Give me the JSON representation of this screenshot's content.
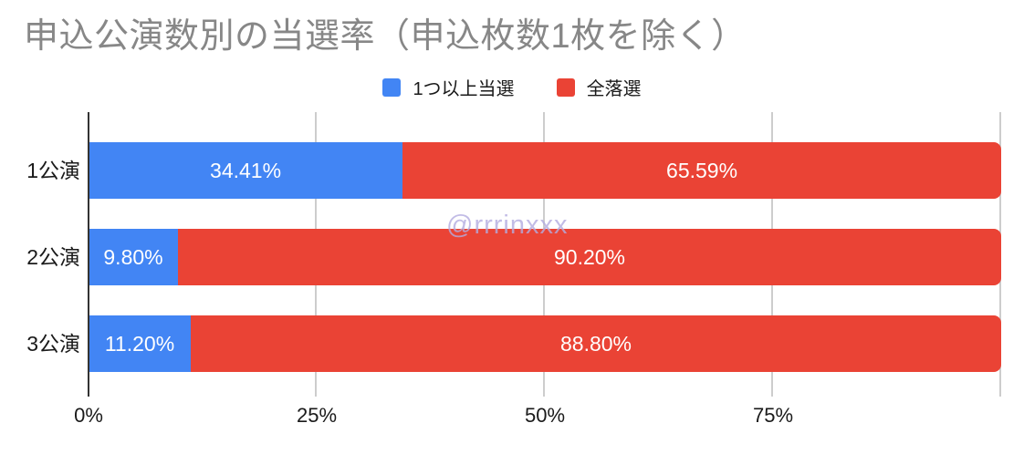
{
  "chart_data": {
    "type": "bar",
    "orientation": "horizontal",
    "stacked": true,
    "title": "申込公演数別の当選率（申込枚数1枚を除く）",
    "categories": [
      "1公演",
      "2公演",
      "3公演"
    ],
    "series": [
      {
        "name": "1つ以上当選",
        "color": "#4285F4",
        "values": [
          34.41,
          9.8,
          11.2
        ]
      },
      {
        "name": "全落選",
        "color": "#EA4335",
        "values": [
          65.59,
          90.2,
          88.8
        ]
      }
    ],
    "value_labels": [
      [
        "34.41%",
        "65.59%"
      ],
      [
        "9.80%",
        "90.20%"
      ],
      [
        "11.20%",
        "88.80%"
      ]
    ],
    "x_axis": {
      "min": 0,
      "max": 100,
      "ticks": [
        {
          "label": "0%",
          "pct": 0
        },
        {
          "label": "25%",
          "pct": 25
        },
        {
          "label": "50%",
          "pct": 50
        },
        {
          "label": "75%",
          "pct": 75
        }
      ],
      "gridline_pcts": [
        25,
        50,
        75,
        100
      ]
    },
    "legend_position": "top",
    "grid": true,
    "watermark": "@rrrinxxx",
    "colors": {
      "background": "#ffffff",
      "title_text": "#878787",
      "label_text": "#1a1a1a",
      "bar_label_text": "#ffffff",
      "axis_line": "#333333",
      "gridline": "#cdcdcd",
      "watermark_text": "#b3ace0"
    }
  }
}
